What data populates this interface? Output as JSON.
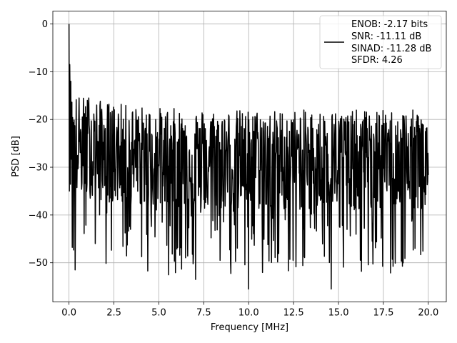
{
  "chart_data": {
    "type": "line",
    "title": "",
    "xlabel": "Frequency [MHz]",
    "ylabel": "PSD [dB]",
    "xlim": [
      -0.9,
      21.0
    ],
    "ylim": [
      -58.2,
      2.7
    ],
    "xticks": [
      0.0,
      2.5,
      5.0,
      7.5,
      10.0,
      12.5,
      15.0,
      17.5,
      20.0
    ],
    "xtick_labels": [
      "0.0",
      "2.5",
      "5.0",
      "7.5",
      "10.0",
      "12.5",
      "15.0",
      "17.5",
      "20.0"
    ],
    "yticks": [
      0,
      -10,
      -20,
      -30,
      -40,
      -50
    ],
    "ytick_labels": [
      "0",
      "−10",
      "−20",
      "−30",
      "−40",
      "−50"
    ],
    "grid": true,
    "legend_position": "top-right",
    "series": [
      {
        "legend_lines": [
          "ENOB: -2.17 bits",
          "SNR: -11.11 dB",
          "SINAD: -11.28 dB",
          "SFDR: 4.26"
        ],
        "color": "#000000",
        "x_range": [
          0.0,
          20.0
        ],
        "points": 1000,
        "shape": "dense noisy power spectrum: peak of 0 dB at 0 MHz, fast drop to about -20 dB within 0.2 MHz, then a noise floor centered near -29 dB with peaks reaching about -16 dB and dips down to about -55 dB",
        "features": [
          {
            "x": 0.0,
            "y": 0.0
          },
          {
            "x": 0.05,
            "y": -8.5
          },
          {
            "x": 0.1,
            "y": -12.0
          },
          {
            "x": 0.35,
            "y": -51.5
          },
          {
            "x": 1.1,
            "y": -15.5
          },
          {
            "x": 7.05,
            "y": -53.5
          },
          {
            "x": 10.0,
            "y": -55.5
          },
          {
            "x": 14.6,
            "y": -55.5
          }
        ]
      }
    ]
  }
}
